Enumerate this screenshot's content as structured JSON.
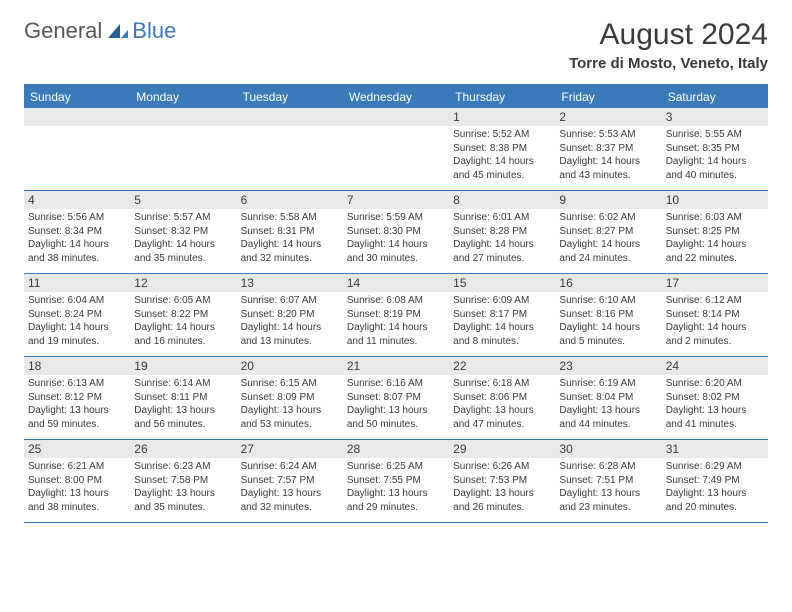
{
  "brand": {
    "general": "General",
    "blue": "Blue"
  },
  "title": "August 2024",
  "location": "Torre di Mosto, Veneto, Italy",
  "weekdays": [
    "Sunday",
    "Monday",
    "Tuesday",
    "Wednesday",
    "Thursday",
    "Friday",
    "Saturday"
  ],
  "colors": {
    "accent": "#3a7ab8",
    "header_bg": "#3a7ab8",
    "daynum_bg": "#e9e9e9",
    "text": "#3a3a3a",
    "logo_gray": "#585858"
  },
  "weeks": [
    [
      {
        "num": "",
        "lines": []
      },
      {
        "num": "",
        "lines": []
      },
      {
        "num": "",
        "lines": []
      },
      {
        "num": "",
        "lines": []
      },
      {
        "num": "1",
        "lines": [
          "Sunrise: 5:52 AM",
          "Sunset: 8:38 PM",
          "Daylight: 14 hours and 45 minutes."
        ]
      },
      {
        "num": "2",
        "lines": [
          "Sunrise: 5:53 AM",
          "Sunset: 8:37 PM",
          "Daylight: 14 hours and 43 minutes."
        ]
      },
      {
        "num": "3",
        "lines": [
          "Sunrise: 5:55 AM",
          "Sunset: 8:35 PM",
          "Daylight: 14 hours and 40 minutes."
        ]
      }
    ],
    [
      {
        "num": "4",
        "lines": [
          "Sunrise: 5:56 AM",
          "Sunset: 8:34 PM",
          "Daylight: 14 hours and 38 minutes."
        ]
      },
      {
        "num": "5",
        "lines": [
          "Sunrise: 5:57 AM",
          "Sunset: 8:32 PM",
          "Daylight: 14 hours and 35 minutes."
        ]
      },
      {
        "num": "6",
        "lines": [
          "Sunrise: 5:58 AM",
          "Sunset: 8:31 PM",
          "Daylight: 14 hours and 32 minutes."
        ]
      },
      {
        "num": "7",
        "lines": [
          "Sunrise: 5:59 AM",
          "Sunset: 8:30 PM",
          "Daylight: 14 hours and 30 minutes."
        ]
      },
      {
        "num": "8",
        "lines": [
          "Sunrise: 6:01 AM",
          "Sunset: 8:28 PM",
          "Daylight: 14 hours and 27 minutes."
        ]
      },
      {
        "num": "9",
        "lines": [
          "Sunrise: 6:02 AM",
          "Sunset: 8:27 PM",
          "Daylight: 14 hours and 24 minutes."
        ]
      },
      {
        "num": "10",
        "lines": [
          "Sunrise: 6:03 AM",
          "Sunset: 8:25 PM",
          "Daylight: 14 hours and 22 minutes."
        ]
      }
    ],
    [
      {
        "num": "11",
        "lines": [
          "Sunrise: 6:04 AM",
          "Sunset: 8:24 PM",
          "Daylight: 14 hours and 19 minutes."
        ]
      },
      {
        "num": "12",
        "lines": [
          "Sunrise: 6:05 AM",
          "Sunset: 8:22 PM",
          "Daylight: 14 hours and 16 minutes."
        ]
      },
      {
        "num": "13",
        "lines": [
          "Sunrise: 6:07 AM",
          "Sunset: 8:20 PM",
          "Daylight: 14 hours and 13 minutes."
        ]
      },
      {
        "num": "14",
        "lines": [
          "Sunrise: 6:08 AM",
          "Sunset: 8:19 PM",
          "Daylight: 14 hours and 11 minutes."
        ]
      },
      {
        "num": "15",
        "lines": [
          "Sunrise: 6:09 AM",
          "Sunset: 8:17 PM",
          "Daylight: 14 hours and 8 minutes."
        ]
      },
      {
        "num": "16",
        "lines": [
          "Sunrise: 6:10 AM",
          "Sunset: 8:16 PM",
          "Daylight: 14 hours and 5 minutes."
        ]
      },
      {
        "num": "17",
        "lines": [
          "Sunrise: 6:12 AM",
          "Sunset: 8:14 PM",
          "Daylight: 14 hours and 2 minutes."
        ]
      }
    ],
    [
      {
        "num": "18",
        "lines": [
          "Sunrise: 6:13 AM",
          "Sunset: 8:12 PM",
          "Daylight: 13 hours and 59 minutes."
        ]
      },
      {
        "num": "19",
        "lines": [
          "Sunrise: 6:14 AM",
          "Sunset: 8:11 PM",
          "Daylight: 13 hours and 56 minutes."
        ]
      },
      {
        "num": "20",
        "lines": [
          "Sunrise: 6:15 AM",
          "Sunset: 8:09 PM",
          "Daylight: 13 hours and 53 minutes."
        ]
      },
      {
        "num": "21",
        "lines": [
          "Sunrise: 6:16 AM",
          "Sunset: 8:07 PM",
          "Daylight: 13 hours and 50 minutes."
        ]
      },
      {
        "num": "22",
        "lines": [
          "Sunrise: 6:18 AM",
          "Sunset: 8:06 PM",
          "Daylight: 13 hours and 47 minutes."
        ]
      },
      {
        "num": "23",
        "lines": [
          "Sunrise: 6:19 AM",
          "Sunset: 8:04 PM",
          "Daylight: 13 hours and 44 minutes."
        ]
      },
      {
        "num": "24",
        "lines": [
          "Sunrise: 6:20 AM",
          "Sunset: 8:02 PM",
          "Daylight: 13 hours and 41 minutes."
        ]
      }
    ],
    [
      {
        "num": "25",
        "lines": [
          "Sunrise: 6:21 AM",
          "Sunset: 8:00 PM",
          "Daylight: 13 hours and 38 minutes."
        ]
      },
      {
        "num": "26",
        "lines": [
          "Sunrise: 6:23 AM",
          "Sunset: 7:58 PM",
          "Daylight: 13 hours and 35 minutes."
        ]
      },
      {
        "num": "27",
        "lines": [
          "Sunrise: 6:24 AM",
          "Sunset: 7:57 PM",
          "Daylight: 13 hours and 32 minutes."
        ]
      },
      {
        "num": "28",
        "lines": [
          "Sunrise: 6:25 AM",
          "Sunset: 7:55 PM",
          "Daylight: 13 hours and 29 minutes."
        ]
      },
      {
        "num": "29",
        "lines": [
          "Sunrise: 6:26 AM",
          "Sunset: 7:53 PM",
          "Daylight: 13 hours and 26 minutes."
        ]
      },
      {
        "num": "30",
        "lines": [
          "Sunrise: 6:28 AM",
          "Sunset: 7:51 PM",
          "Daylight: 13 hours and 23 minutes."
        ]
      },
      {
        "num": "31",
        "lines": [
          "Sunrise: 6:29 AM",
          "Sunset: 7:49 PM",
          "Daylight: 13 hours and 20 minutes."
        ]
      }
    ]
  ]
}
